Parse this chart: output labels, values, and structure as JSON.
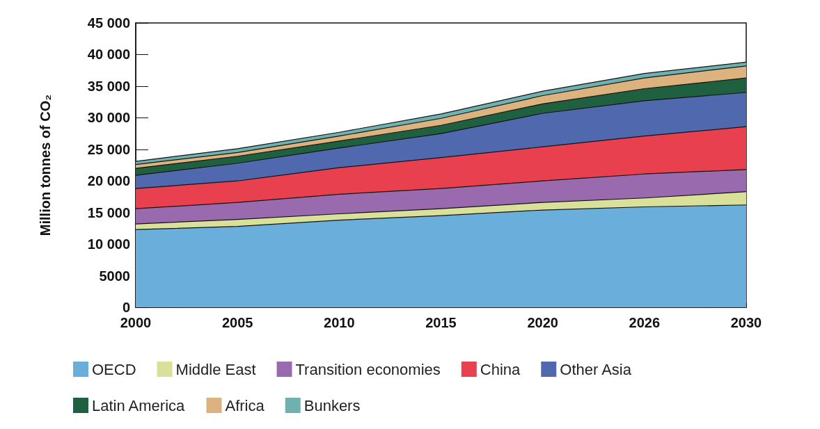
{
  "chart_data": {
    "type": "area",
    "stacked": true,
    "ylabel": "Million tonnes of CO₂",
    "categories": [
      "2000",
      "2005",
      "2010",
      "2015",
      "2020",
      "2026",
      "2030"
    ],
    "ylim": [
      0,
      45000
    ],
    "yticks": [
      0,
      5000,
      {
        "value": 10000,
        "label": "10 000"
      },
      {
        "value": 15000,
        "label": "15 000"
      },
      {
        "value": 20000,
        "label": "20 000"
      },
      {
        "value": 25000,
        "label": "25 000"
      },
      {
        "value": 30000,
        "label": "30 000"
      },
      {
        "value": 35000,
        "label": "35 000"
      },
      {
        "value": 40000,
        "label": "40 000"
      },
      {
        "value": 45000,
        "label": "45 000"
      }
    ],
    "grid": false,
    "legend": "bottom",
    "marker": "none",
    "series": [
      {
        "name": "OECD",
        "color": "#6aaedb",
        "values": [
          12300,
          12800,
          13800,
          14500,
          15400,
          15900,
          16200
        ]
      },
      {
        "name": "Middle East",
        "color": "#d8e09a",
        "values": [
          900,
          1100,
          1000,
          1100,
          1200,
          1400,
          2100
        ]
      },
      {
        "name": "Transition economies",
        "color": "#9a6aae",
        "values": [
          2400,
          2700,
          3100,
          3200,
          3400,
          3800,
          3500
        ]
      },
      {
        "name": "China",
        "color": "#e8404f",
        "values": [
          3200,
          3400,
          4200,
          4900,
          5400,
          6000,
          6800
        ]
      },
      {
        "name": "Other Asia",
        "color": "#5068ae",
        "values": [
          2100,
          2800,
          3100,
          3800,
          5300,
          5600,
          5400
        ]
      },
      {
        "name": "Latin America",
        "color": "#1f6040",
        "values": [
          1100,
          1100,
          1100,
          1300,
          1500,
          1900,
          2300
        ]
      },
      {
        "name": "Africa",
        "color": "#dcb37e",
        "values": [
          600,
          600,
          800,
          1100,
          1300,
          1700,
          1900
        ]
      },
      {
        "name": "Bunkers",
        "color": "#6fb0b0",
        "values": [
          500,
          600,
          600,
          700,
          700,
          700,
          600
        ]
      }
    ]
  }
}
